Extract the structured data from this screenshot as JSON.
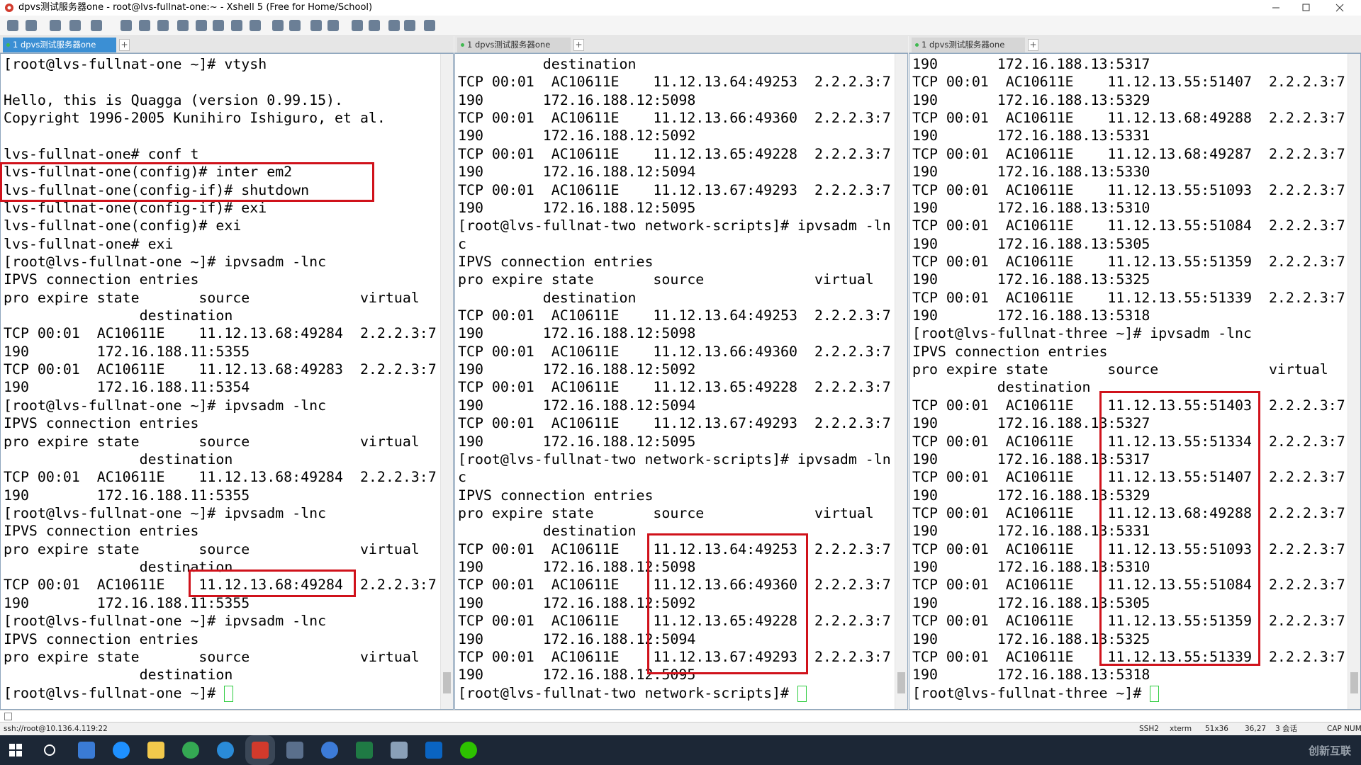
{
  "window": {
    "title": "dpvs测试服务器one - root@lvs-fullnat-one:~ - Xshell 5 (Free for Home/School)"
  },
  "panes": [
    {
      "tab": "1 dpvs测试服务器one",
      "lines": [
        "[root@lvs-fullnat-one ~]# vtysh",
        null,
        "Hello, this is Quagga (version 0.99.15).",
        "Copyright 1996-2005 Kunihiro Ishiguro, et al.",
        null,
        "lvs-fullnat-one# conf t",
        "lvs-fullnat-one(config)# inter em2",
        "lvs-fullnat-one(config-if)# shutdown",
        "lvs-fullnat-one(config-if)# exi",
        "lvs-fullnat-one(config)# exi",
        "lvs-fullnat-one# exi",
        "[root@lvs-fullnat-one ~]# ipvsadm -lnc",
        "IPVS connection entries",
        "pro expire state       source             virtual",
        "                destination",
        "TCP 00:01  AC10611E    11.12.13.68:49284  2.2.2.3:7",
        "190        172.16.188.11:5355",
        "TCP 00:01  AC10611E    11.12.13.68:49283  2.2.2.3:7",
        "190        172.16.188.11:5354",
        "[root@lvs-fullnat-one ~]# ipvsadm -lnc",
        "IPVS connection entries",
        "pro expire state       source             virtual",
        "                destination",
        "TCP 00:01  AC10611E    11.12.13.68:49284  2.2.2.3:7",
        "190        172.16.188.11:5355",
        "[root@lvs-fullnat-one ~]# ipvsadm -lnc",
        "IPVS connection entries",
        "pro expire state       source             virtual",
        "                destination",
        "TCP 00:01  AC10611E    11.12.13.68:49284  2.2.2.3:7",
        "190        172.16.188.11:5355",
        "[root@lvs-fullnat-one ~]# ipvsadm -lnc",
        "IPVS connection entries",
        "pro expire state       source             virtual",
        "                destination",
        "[root@lvs-fullnat-one ~]#"
      ]
    },
    {
      "tab": "1 dpvs测试服务器one",
      "lines": [
        "          destination",
        "TCP 00:01  AC10611E    11.12.13.64:49253  2.2.2.3:7",
        "190       172.16.188.12:5098",
        "TCP 00:01  AC10611E    11.12.13.66:49360  2.2.2.3:7",
        "190       172.16.188.12:5092",
        "TCP 00:01  AC10611E    11.12.13.65:49228  2.2.2.3:7",
        "190       172.16.188.12:5094",
        "TCP 00:01  AC10611E    11.12.13.67:49293  2.2.2.3:7",
        "190       172.16.188.12:5095",
        "[root@lvs-fullnat-two network-scripts]# ipvsadm -ln",
        "c",
        "IPVS connection entries",
        "pro expire state       source             virtual",
        "          destination",
        "TCP 00:01  AC10611E    11.12.13.64:49253  2.2.2.3:7",
        "190       172.16.188.12:5098",
        "TCP 00:01  AC10611E    11.12.13.66:49360  2.2.2.3:7",
        "190       172.16.188.12:5092",
        "TCP 00:01  AC10611E    11.12.13.65:49228  2.2.2.3:7",
        "190       172.16.188.12:5094",
        "TCP 00:01  AC10611E    11.12.13.67:49293  2.2.2.3:7",
        "190       172.16.188.12:5095",
        "[root@lvs-fullnat-two network-scripts]# ipvsadm -ln",
        "c",
        "IPVS connection entries",
        "pro expire state       source             virtual",
        "          destination",
        "TCP 00:01  AC10611E    11.12.13.64:49253  2.2.2.3:7",
        "190       172.16.188.12:5098",
        "TCP 00:01  AC10611E    11.12.13.66:49360  2.2.2.3:7",
        "190       172.16.188.12:5092",
        "TCP 00:01  AC10611E    11.12.13.65:49228  2.2.2.3:7",
        "190       172.16.188.12:5094",
        "TCP 00:01  AC10611E    11.12.13.67:49293  2.2.2.3:7",
        "190       172.16.188.12:5095",
        "[root@lvs-fullnat-two network-scripts]#"
      ]
    },
    {
      "tab": "1 dpvs测试服务器one",
      "lines": [
        "190       172.16.188.13:5317",
        "TCP 00:01  AC10611E    11.12.13.55:51407  2.2.2.3:7",
        "190       172.16.188.13:5329",
        "TCP 00:01  AC10611E    11.12.13.68:49288  2.2.2.3:7",
        "190       172.16.188.13:5331",
        "TCP 00:01  AC10611E    11.12.13.68:49287  2.2.2.3:7",
        "190       172.16.188.13:5330",
        "TCP 00:01  AC10611E    11.12.13.55:51093  2.2.2.3:7",
        "190       172.16.188.13:5310",
        "TCP 00:01  AC10611E    11.12.13.55:51084  2.2.2.3:7",
        "190       172.16.188.13:5305",
        "TCP 00:01  AC10611E    11.12.13.55:51359  2.2.2.3:7",
        "190       172.16.188.13:5325",
        "TCP 00:01  AC10611E    11.12.13.55:51339  2.2.2.3:7",
        "190       172.16.188.13:5318",
        "[root@lvs-fullnat-three ~]# ipvsadm -lnc",
        "IPVS connection entries",
        "pro expire state       source             virtual",
        "          destination",
        "TCP 00:01  AC10611E    11.12.13.55:51403  2.2.2.3:7",
        "190       172.16.188.13:5327",
        "TCP 00:01  AC10611E    11.12.13.55:51334  2.2.2.3:7",
        "190       172.16.188.13:5317",
        "TCP 00:01  AC10611E    11.12.13.55:51407  2.2.2.3:7",
        "190       172.16.188.13:5329",
        "TCP 00:01  AC10611E    11.12.13.68:49288  2.2.2.3:7",
        "190       172.16.188.13:5331",
        "TCP 00:01  AC10611E    11.12.13.55:51093  2.2.2.3:7",
        "190       172.16.188.13:5310",
        "TCP 00:01  AC10611E    11.12.13.55:51084  2.2.2.3:7",
        "190       172.16.188.13:5305",
        "TCP 00:01  AC10611E    11.12.13.55:51359  2.2.2.3:7",
        "190       172.16.188.13:5325",
        "TCP 00:01  AC10611E    11.12.13.55:51339  2.2.2.3:7",
        "190       172.16.188.13:5318",
        "[root@lvs-fullnat-three ~]#"
      ]
    }
  ],
  "status_bar": {
    "address": "ssh://root@10.136.4.119:22",
    "protocol": "SSH2",
    "terminal": "xterm",
    "size": "51x36",
    "cursor": "36,27",
    "sessions": "3 会话",
    "keys": "CAP NUM"
  },
  "watermark": "创新互联"
}
